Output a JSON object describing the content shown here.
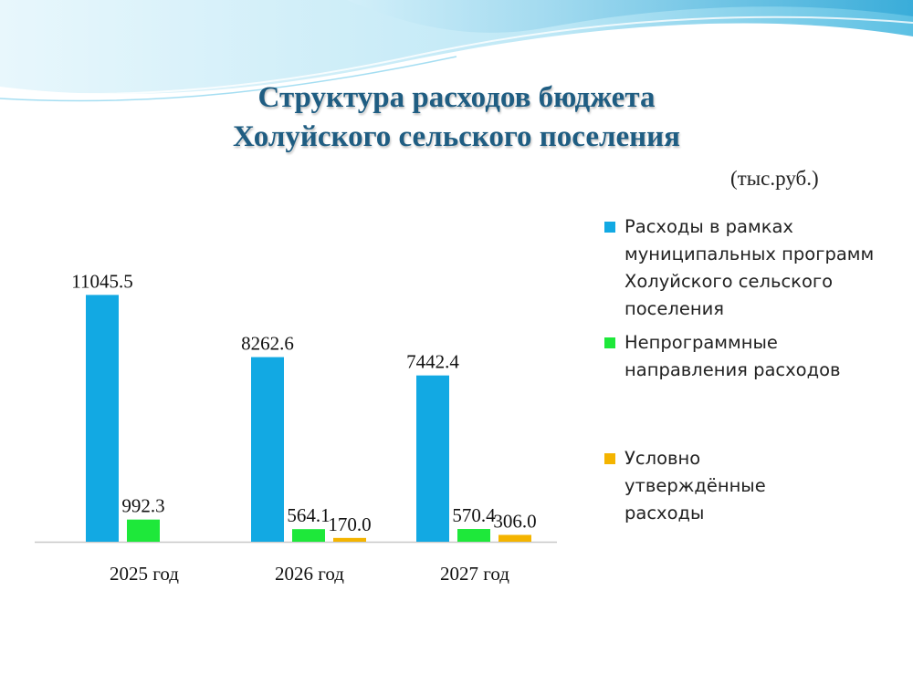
{
  "title": {
    "line1": "Структура расходов бюджета",
    "line2": "Холуйского сельского поселения"
  },
  "unit_label": "(тыс.руб.)",
  "colors": {
    "title": "#1f5d82",
    "series_programs": "#12a9e3",
    "series_nonprogram": "#1ee83a",
    "series_conditional": "#f4b400",
    "wave_light": "#cdeef8",
    "wave_dark": "#4db8df"
  },
  "chart_data": {
    "type": "bar",
    "categories": [
      "2025 год",
      "2026 год",
      "2027 год"
    ],
    "series": [
      {
        "name": "Расходы в рамках муниципальных программ Холуйского сельского поселения",
        "values": [
          11045.5,
          8262.6,
          7442.4
        ],
        "labels": [
          "11045.5",
          "8262.6",
          "7442.4"
        ],
        "color": "#12a9e3"
      },
      {
        "name": "Непрограммные направления расходов",
        "values": [
          992.3,
          564.1,
          570.4
        ],
        "labels": [
          "992.3",
          "564.1",
          "570.4"
        ],
        "color": "#1ee83a"
      },
      {
        "name": "Условно утверждённые расходы",
        "values": [
          null,
          170.0,
          306.0
        ],
        "labels": [
          "",
          "170.0",
          "306.0"
        ],
        "color": "#f4b400"
      }
    ],
    "ylim": [
      0,
      12000
    ],
    "grid": false,
    "legend_position": "right"
  }
}
